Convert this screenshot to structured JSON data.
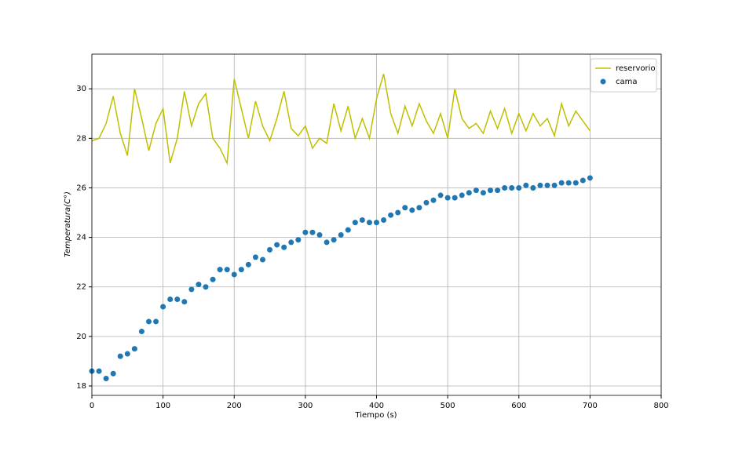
{
  "chart_data": {
    "type": "line",
    "xlabel": "Tiempo (s)",
    "ylabel": "Temperatura(C°)",
    "xlim": [
      0,
      800
    ],
    "ylim": [
      17.62,
      31.4
    ],
    "xticks": [
      0,
      100,
      200,
      300,
      400,
      500,
      600,
      700,
      800
    ],
    "yticks": [
      18,
      20,
      22,
      24,
      26,
      28,
      30
    ],
    "grid": true,
    "legend": "upper right",
    "series": [
      {
        "name": "reservorio",
        "type": "line",
        "color": "#bfbf00",
        "x": [
          0,
          10,
          20,
          30,
          40,
          50,
          60,
          70,
          80,
          90,
          100,
          110,
          120,
          130,
          140,
          150,
          160,
          170,
          180,
          190,
          200,
          210,
          220,
          230,
          240,
          250,
          260,
          270,
          280,
          290,
          300,
          310,
          320,
          330,
          340,
          350,
          360,
          370,
          380,
          390,
          400,
          410,
          420,
          430,
          440,
          450,
          460,
          470,
          480,
          490,
          500,
          510,
          520,
          530,
          540,
          550,
          560,
          570,
          580,
          590,
          600,
          610,
          620,
          630,
          640,
          650,
          660,
          670,
          680,
          690,
          700
        ],
        "values": [
          27.9,
          28.0,
          28.6,
          29.7,
          28.2,
          27.3,
          30.0,
          28.8,
          27.5,
          28.6,
          29.2,
          27.0,
          28.0,
          29.9,
          28.5,
          29.4,
          29.8,
          28.0,
          27.6,
          27.0,
          30.4,
          29.2,
          28.0,
          29.5,
          28.5,
          27.9,
          28.8,
          29.9,
          28.4,
          28.1,
          28.5,
          27.6,
          28.0,
          27.8,
          29.4,
          28.3,
          29.3,
          28.0,
          28.8,
          28.0,
          29.6,
          30.6,
          29.0,
          28.2,
          29.3,
          28.5,
          29.4,
          28.7,
          28.2,
          29.0,
          28.0,
          30.0,
          28.8,
          28.4,
          28.6,
          28.2,
          29.1,
          28.4,
          29.2,
          28.2,
          29.0,
          28.3,
          29.0,
          28.5,
          28.8,
          28.1,
          29.4,
          28.5,
          29.1,
          28.7,
          28.3
        ]
      },
      {
        "name": "cama",
        "type": "scatter",
        "color": "#1f77b4",
        "x": [
          0,
          10,
          20,
          30,
          40,
          50,
          60,
          70,
          80,
          90,
          100,
          110,
          120,
          130,
          140,
          150,
          160,
          170,
          180,
          190,
          200,
          210,
          220,
          230,
          240,
          250,
          260,
          270,
          280,
          290,
          300,
          310,
          320,
          330,
          340,
          350,
          360,
          370,
          380,
          390,
          400,
          410,
          420,
          430,
          440,
          450,
          460,
          470,
          480,
          490,
          500,
          510,
          520,
          530,
          540,
          550,
          560,
          570,
          580,
          590,
          600,
          610,
          620,
          630,
          640,
          650,
          660,
          670,
          680,
          690,
          700
        ],
        "values": [
          18.6,
          18.6,
          18.3,
          18.5,
          19.2,
          19.3,
          19.5,
          20.2,
          20.6,
          20.6,
          21.2,
          21.5,
          21.5,
          21.4,
          21.9,
          22.1,
          22.0,
          22.3,
          22.7,
          22.7,
          22.5,
          22.7,
          22.9,
          23.2,
          23.1,
          23.5,
          23.7,
          23.6,
          23.8,
          23.9,
          24.2,
          24.2,
          24.1,
          23.8,
          23.9,
          24.1,
          24.3,
          24.6,
          24.7,
          24.6,
          24.6,
          24.7,
          24.9,
          25.0,
          25.2,
          25.1,
          25.2,
          25.4,
          25.5,
          25.7,
          25.6,
          25.6,
          25.7,
          25.8,
          25.9,
          25.8,
          25.9,
          25.9,
          26.0,
          26.0,
          26.0,
          26.1,
          26.0,
          26.1,
          26.1,
          26.1,
          26.2,
          26.2,
          26.2,
          26.3,
          26.4
        ]
      }
    ]
  }
}
